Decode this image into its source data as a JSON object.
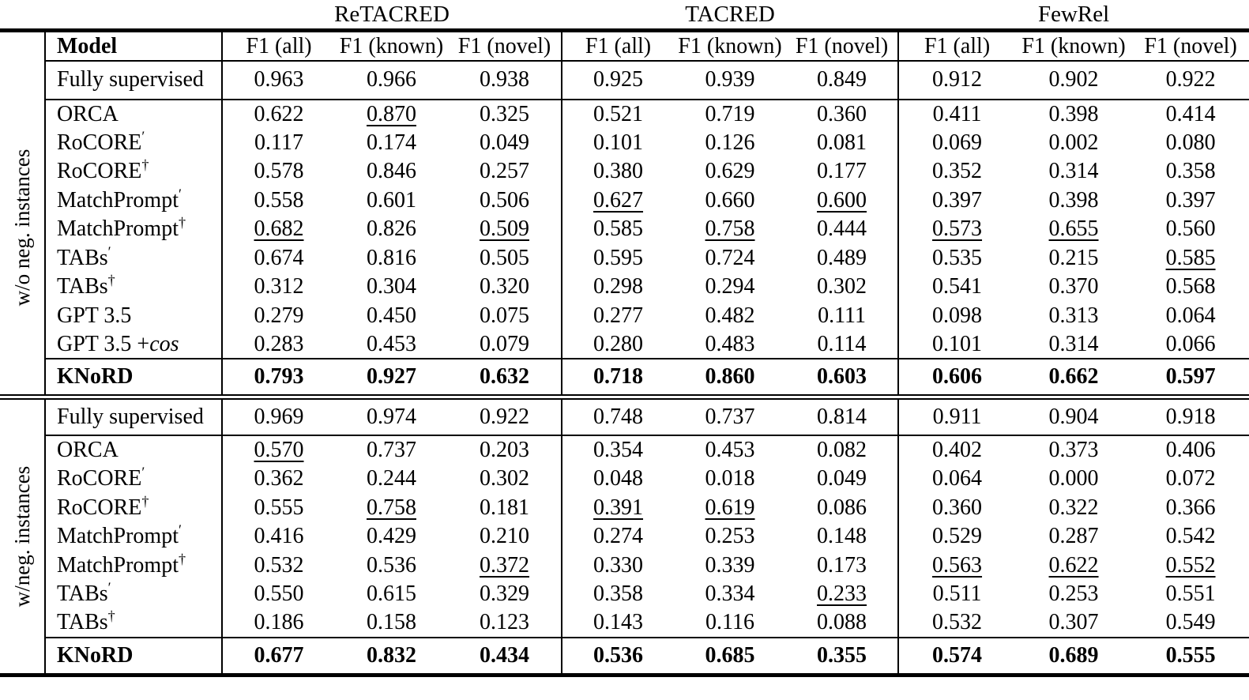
{
  "datasets": [
    {
      "label": "ReTACRED"
    },
    {
      "label": "TACRED"
    },
    {
      "label": "FewRel"
    }
  ],
  "columns": {
    "model": "Model",
    "metrics": [
      "F1 (all)",
      "F1 (known)",
      "F1 (novel)"
    ]
  },
  "sections": [
    {
      "group_label": "w/o neg. instances",
      "rows": [
        {
          "model": {
            "base": "Fully supervised"
          },
          "cells": [
            {
              "v": "0.963"
            },
            {
              "v": "0.966"
            },
            {
              "v": "0.938"
            },
            {
              "v": "0.925"
            },
            {
              "v": "0.939"
            },
            {
              "v": "0.849"
            },
            {
              "v": "0.912"
            },
            {
              "v": "0.902"
            },
            {
              "v": "0.922"
            }
          ]
        },
        {
          "model": {
            "base": "ORCA"
          },
          "cells": [
            {
              "v": "0.622"
            },
            {
              "v": "0.870",
              "u": true
            },
            {
              "v": "0.325"
            },
            {
              "v": "0.521"
            },
            {
              "v": "0.719"
            },
            {
              "v": "0.360"
            },
            {
              "v": "0.411"
            },
            {
              "v": "0.398"
            },
            {
              "v": "0.414"
            }
          ]
        },
        {
          "model": {
            "base": "RoCORE",
            "sup": "′"
          },
          "cells": [
            {
              "v": "0.117"
            },
            {
              "v": "0.174"
            },
            {
              "v": "0.049"
            },
            {
              "v": "0.101"
            },
            {
              "v": "0.126"
            },
            {
              "v": "0.081"
            },
            {
              "v": "0.069"
            },
            {
              "v": "0.002"
            },
            {
              "v": "0.080"
            }
          ]
        },
        {
          "model": {
            "base": "RoCORE",
            "sup": "†"
          },
          "cells": [
            {
              "v": "0.578"
            },
            {
              "v": "0.846"
            },
            {
              "v": "0.257"
            },
            {
              "v": "0.380"
            },
            {
              "v": "0.629"
            },
            {
              "v": "0.177"
            },
            {
              "v": "0.352"
            },
            {
              "v": "0.314"
            },
            {
              "v": "0.358"
            }
          ]
        },
        {
          "model": {
            "base": "MatchPrompt",
            "sup": "′"
          },
          "cells": [
            {
              "v": "0.558"
            },
            {
              "v": "0.601"
            },
            {
              "v": "0.506"
            },
            {
              "v": "0.627",
              "u": true
            },
            {
              "v": "0.660"
            },
            {
              "v": "0.600",
              "u": true
            },
            {
              "v": "0.397"
            },
            {
              "v": "0.398"
            },
            {
              "v": "0.397"
            }
          ]
        },
        {
          "model": {
            "base": "MatchPrompt",
            "sup": "†"
          },
          "cells": [
            {
              "v": "0.682",
              "u": true
            },
            {
              "v": "0.826"
            },
            {
              "v": "0.509",
              "u": true
            },
            {
              "v": "0.585"
            },
            {
              "v": "0.758",
              "u": true
            },
            {
              "v": "0.444"
            },
            {
              "v": "0.573",
              "u": true
            },
            {
              "v": "0.655",
              "u": true
            },
            {
              "v": "0.560"
            }
          ]
        },
        {
          "model": {
            "base": "TABs",
            "sup": "′"
          },
          "cells": [
            {
              "v": "0.674"
            },
            {
              "v": "0.816"
            },
            {
              "v": "0.505"
            },
            {
              "v": "0.595"
            },
            {
              "v": "0.724"
            },
            {
              "v": "0.489"
            },
            {
              "v": "0.535"
            },
            {
              "v": "0.215"
            },
            {
              "v": "0.585",
              "u": true
            }
          ]
        },
        {
          "model": {
            "base": "TABs",
            "sup": "†"
          },
          "cells": [
            {
              "v": "0.312"
            },
            {
              "v": "0.304"
            },
            {
              "v": "0.320"
            },
            {
              "v": "0.298"
            },
            {
              "v": "0.294"
            },
            {
              "v": "0.302"
            },
            {
              "v": "0.541"
            },
            {
              "v": "0.370"
            },
            {
              "v": "0.568"
            }
          ]
        },
        {
          "model": {
            "base": "GPT 3.5"
          },
          "cells": [
            {
              "v": "0.279"
            },
            {
              "v": "0.450"
            },
            {
              "v": "0.075"
            },
            {
              "v": "0.277"
            },
            {
              "v": "0.482"
            },
            {
              "v": "0.111"
            },
            {
              "v": "0.098"
            },
            {
              "v": "0.313"
            },
            {
              "v": "0.064"
            }
          ]
        },
        {
          "model": {
            "base": "GPT 3.5 +",
            "italic": "cos"
          },
          "cells": [
            {
              "v": "0.283"
            },
            {
              "v": "0.453"
            },
            {
              "v": "0.079"
            },
            {
              "v": "0.280"
            },
            {
              "v": "0.483"
            },
            {
              "v": "0.114"
            },
            {
              "v": "0.101"
            },
            {
              "v": "0.314"
            },
            {
              "v": "0.066"
            }
          ]
        },
        {
          "model": {
            "base": "KNoRD"
          },
          "cells": [
            {
              "v": "0.793"
            },
            {
              "v": "0.927"
            },
            {
              "v": "0.632"
            },
            {
              "v": "0.718"
            },
            {
              "v": "0.860"
            },
            {
              "v": "0.603"
            },
            {
              "v": "0.606"
            },
            {
              "v": "0.662"
            },
            {
              "v": "0.597"
            }
          ]
        }
      ]
    },
    {
      "group_label": "w/neg. instances",
      "rows": [
        {
          "model": {
            "base": "Fully supervised"
          },
          "cells": [
            {
              "v": "0.969"
            },
            {
              "v": "0.974"
            },
            {
              "v": "0.922"
            },
            {
              "v": "0.748"
            },
            {
              "v": "0.737"
            },
            {
              "v": "0.814"
            },
            {
              "v": "0.911"
            },
            {
              "v": "0.904"
            },
            {
              "v": "0.918"
            }
          ]
        },
        {
          "model": {
            "base": "ORCA"
          },
          "cells": [
            {
              "v": "0.570",
              "u": true
            },
            {
              "v": "0.737"
            },
            {
              "v": "0.203"
            },
            {
              "v": "0.354"
            },
            {
              "v": "0.453"
            },
            {
              "v": "0.082"
            },
            {
              "v": "0.402"
            },
            {
              "v": "0.373"
            },
            {
              "v": "0.406"
            }
          ]
        },
        {
          "model": {
            "base": "RoCORE",
            "sup": "′"
          },
          "cells": [
            {
              "v": "0.362"
            },
            {
              "v": "0.244"
            },
            {
              "v": "0.302"
            },
            {
              "v": "0.048"
            },
            {
              "v": "0.018"
            },
            {
              "v": "0.049"
            },
            {
              "v": "0.064"
            },
            {
              "v": "0.000"
            },
            {
              "v": "0.072"
            }
          ]
        },
        {
          "model": {
            "base": "RoCORE",
            "sup": "†"
          },
          "cells": [
            {
              "v": "0.555"
            },
            {
              "v": "0.758",
              "u": true
            },
            {
              "v": "0.181"
            },
            {
              "v": "0.391",
              "u": true
            },
            {
              "v": "0.619",
              "u": true
            },
            {
              "v": "0.086"
            },
            {
              "v": "0.360"
            },
            {
              "v": "0.322"
            },
            {
              "v": "0.366"
            }
          ]
        },
        {
          "model": {
            "base": "MatchPrompt",
            "sup": "′"
          },
          "cells": [
            {
              "v": "0.416"
            },
            {
              "v": "0.429"
            },
            {
              "v": "0.210"
            },
            {
              "v": "0.274"
            },
            {
              "v": "0.253"
            },
            {
              "v": "0.148"
            },
            {
              "v": "0.529"
            },
            {
              "v": "0.287"
            },
            {
              "v": "0.542"
            }
          ]
        },
        {
          "model": {
            "base": "MatchPrompt",
            "sup": "†"
          },
          "cells": [
            {
              "v": "0.532"
            },
            {
              "v": "0.536"
            },
            {
              "v": "0.372",
              "u": true
            },
            {
              "v": "0.330"
            },
            {
              "v": "0.339"
            },
            {
              "v": "0.173"
            },
            {
              "v": "0.563",
              "u": true
            },
            {
              "v": "0.622",
              "u": true
            },
            {
              "v": "0.552",
              "u": true
            }
          ]
        },
        {
          "model": {
            "base": "TABs",
            "sup": "′"
          },
          "cells": [
            {
              "v": "0.550"
            },
            {
              "v": "0.615"
            },
            {
              "v": "0.329"
            },
            {
              "v": "0.358"
            },
            {
              "v": "0.334"
            },
            {
              "v": "0.233",
              "u": true
            },
            {
              "v": "0.511"
            },
            {
              "v": "0.253"
            },
            {
              "v": "0.551"
            }
          ]
        },
        {
          "model": {
            "base": "TABs",
            "sup": "†"
          },
          "cells": [
            {
              "v": "0.186"
            },
            {
              "v": "0.158"
            },
            {
              "v": "0.123"
            },
            {
              "v": "0.143"
            },
            {
              "v": "0.116"
            },
            {
              "v": "0.088"
            },
            {
              "v": "0.532"
            },
            {
              "v": "0.307"
            },
            {
              "v": "0.549"
            }
          ]
        },
        {
          "model": {
            "base": "KNoRD"
          },
          "cells": [
            {
              "v": "0.677"
            },
            {
              "v": "0.832"
            },
            {
              "v": "0.434"
            },
            {
              "v": "0.536"
            },
            {
              "v": "0.685"
            },
            {
              "v": "0.355"
            },
            {
              "v": "0.574"
            },
            {
              "v": "0.689"
            },
            {
              "v": "0.555"
            }
          ]
        }
      ]
    }
  ]
}
